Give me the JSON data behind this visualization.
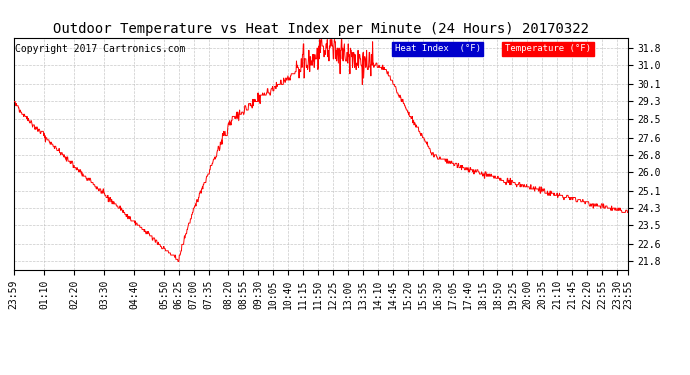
{
  "title": "Outdoor Temperature vs Heat Index per Minute (24 Hours) 20170322",
  "copyright": "Copyright 2017 Cartronics.com",
  "yticks": [
    21.8,
    22.6,
    23.5,
    24.3,
    25.1,
    26.0,
    26.8,
    27.6,
    28.5,
    29.3,
    30.1,
    31.0,
    31.8
  ],
  "ylim": [
    21.4,
    32.3
  ],
  "line_color": "#ff0000",
  "heat_index_legend_bg": "#0000cc",
  "temperature_legend_bg": "#ff0000",
  "background_color": "#ffffff",
  "grid_color": "#bbbbbb",
  "title_fontsize": 10,
  "copyright_fontsize": 7,
  "tick_fontsize": 7,
  "tick_labels": [
    "23:59",
    "01:10",
    "02:20",
    "03:30",
    "04:40",
    "05:50",
    "06:25",
    "07:00",
    "07:35",
    "08:20",
    "08:55",
    "09:30",
    "10:05",
    "10:40",
    "11:15",
    "11:50",
    "12:25",
    "13:00",
    "13:35",
    "14:10",
    "14:45",
    "15:20",
    "15:55",
    "16:30",
    "17:05",
    "17:40",
    "18:15",
    "18:50",
    "19:25",
    "20:00",
    "20:35",
    "21:10",
    "21:45",
    "22:20",
    "22:55",
    "23:30",
    "23:55"
  ]
}
